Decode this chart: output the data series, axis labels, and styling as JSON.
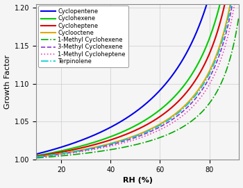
{
  "title": "",
  "xlabel": "RH (%)",
  "ylabel": "Growth Factor",
  "xlim": [
    10,
    92
  ],
  "ylim": [
    1.0,
    1.205
  ],
  "xticks": [
    20,
    40,
    60,
    80
  ],
  "yticks": [
    1.0,
    1.05,
    1.1,
    1.15,
    1.2
  ],
  "curves": [
    {
      "label": "Cyclopentene",
      "kappa": 0.2,
      "color": "#0000ee",
      "ls": "solid",
      "lw": 1.5,
      "dash": null
    },
    {
      "label": "Cyclohexene",
      "kappa": 0.14,
      "color": "#00cc00",
      "ls": "solid",
      "lw": 1.5,
      "dash": null
    },
    {
      "label": "Cycloheptene",
      "kappa": 0.12,
      "color": "#dd0000",
      "ls": "solid",
      "lw": 1.5,
      "dash": null
    },
    {
      "label": "Cyclooctene",
      "kappa": 0.098,
      "color": "#ddaa00",
      "ls": "solid",
      "lw": 1.5,
      "dash": null
    },
    {
      "label": "1-Methyl Cyclohexene",
      "kappa": 0.06,
      "color": "#00aa00",
      "ls": "dashdot",
      "lw": 1.2,
      "dash": [
        4,
        2,
        1,
        2
      ]
    },
    {
      "label": "3-Methyl Cyclohexene",
      "kappa": 0.09,
      "color": "#8833cc",
      "ls": "dashed",
      "lw": 1.2,
      "dash": [
        5,
        2
      ]
    },
    {
      "label": "1-Methyl Cycloheptene",
      "kappa": 0.082,
      "color": "#ee44bb",
      "ls": "dotted",
      "lw": 1.2,
      "dash": [
        1,
        2
      ]
    },
    {
      "label": "Terpinolene",
      "kappa": 0.095,
      "color": "#00cccc",
      "ls": "dashdot",
      "lw": 1.2,
      "dash": [
        4,
        2,
        1,
        2
      ]
    }
  ],
  "legend_fontsize": 6.0,
  "axis_fontsize": 8,
  "tick_fontsize": 7,
  "background": "#f5f5f5",
  "grid_color": "#cccccc"
}
